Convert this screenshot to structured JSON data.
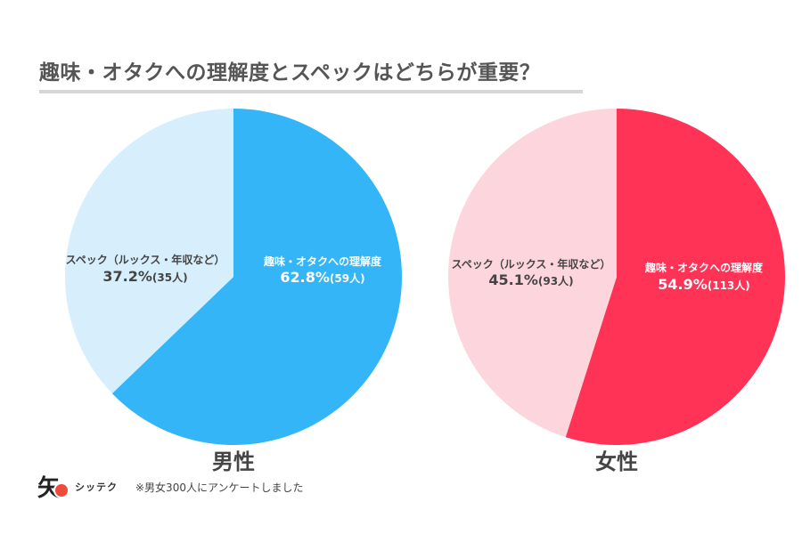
{
  "title": "趣味・オタクへの理解度とスペックはどちらが重要？",
  "footer": {
    "brand": "シッテク",
    "note": "※男女300人にアンケートしました"
  },
  "chart_data": [
    {
      "type": "pie",
      "title": "男性",
      "slices": [
        {
          "label": "趣味・オタクへの理解度",
          "percent_label": "62.8%",
          "count_label": "(59人)",
          "value": 62.8,
          "color": "#33b5f7"
        },
        {
          "label": "スペック（ルックス・年収など）",
          "percent_label": "37.2%",
          "count_label": "(35人)",
          "value": 37.2,
          "color": "#d7effc"
        }
      ]
    },
    {
      "type": "pie",
      "title": "女性",
      "slices": [
        {
          "label": "趣味・オタクへの理解度",
          "percent_label": "54.9%",
          "count_label": "(113人)",
          "value": 54.9,
          "color": "#ff3355"
        },
        {
          "label": "スペック（ルックス・年収など）",
          "percent_label": "45.1%",
          "count_label": "(93人)",
          "value": 45.1,
          "color": "#fdd5dd"
        }
      ]
    }
  ]
}
